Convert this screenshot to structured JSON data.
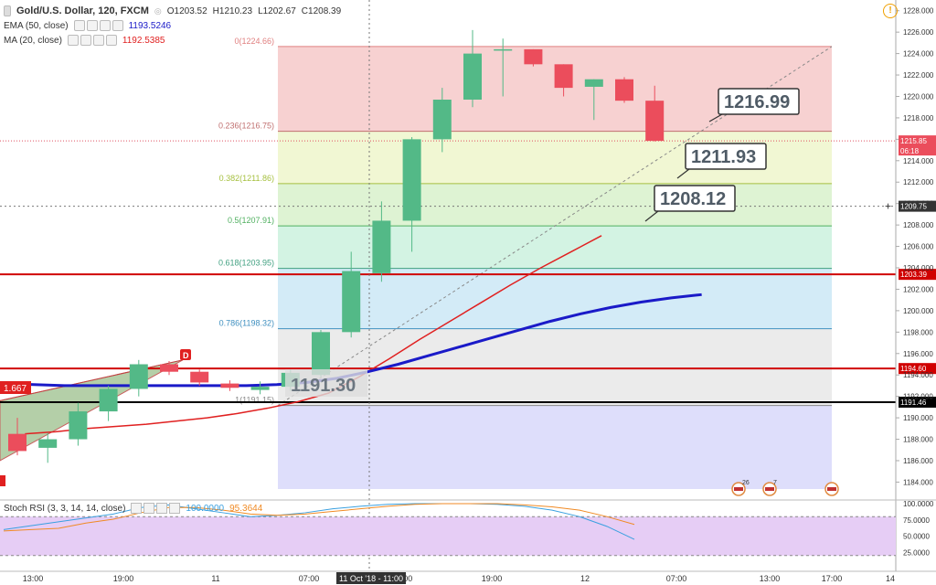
{
  "header": {
    "symbol": "Gold/U.S. Dollar, 120, FXCM",
    "ohlc": {
      "o_label": "O",
      "o": "1203.52",
      "h_label": "H",
      "h": "1210.23",
      "l_label": "L",
      "l": "1202.67",
      "c_label": "C",
      "c": "1208.39"
    },
    "ema_label": "EMA (50, close)",
    "ema_value": "1193.5246",
    "ma_label": "MA (20, close)",
    "ma_value": "1192.5385",
    "warning_glyph": "!"
  },
  "rsi_panel": {
    "label": "Stoch RSI (3, 3, 14, 14, close)",
    "k_value": "100.0000",
    "d_value": "95.3644",
    "ticks": [
      "100.0000",
      "75.0000",
      "50.0000",
      "25.0000"
    ],
    "upper_band": 80,
    "lower_band": 20
  },
  "colors": {
    "up": "#53b987",
    "down": "#eb4d5c",
    "ema": "#1a1ac8",
    "ma": "#e02020",
    "red_lines": "#d00000",
    "black_line": "#000000",
    "callout_text": "#4f5b66",
    "callout_border": "#333333",
    "rsi_k": "#3aa0e0",
    "rsi_d": "#f08a24"
  },
  "chart_data": {
    "type": "candlestick",
    "title": "Gold/U.S. Dollar, 120, FXCM",
    "y_ticks": [
      1184,
      1186,
      1188,
      1190,
      1192,
      1194,
      1196,
      1198,
      1200,
      1202,
      1204,
      1206,
      1208,
      1210,
      1212,
      1214,
      1216,
      1218,
      1220,
      1222,
      1224,
      1226,
      1228
    ],
    "ylim": [
      1182.5,
      1229
    ],
    "x_ticks": [
      "13:00",
      "19:00",
      "11",
      "07:00",
      "13:00",
      "19:00",
      "12",
      "07:00",
      "13:00",
      "17:00",
      "14"
    ],
    "x_cursor_label": "11 Oct '18 - 11:00",
    "candles": [
      {
        "o": 1188.5,
        "h": 1190.0,
        "l": 1186.5,
        "c": 1186.9
      },
      {
        "o": 1187.2,
        "h": 1188.6,
        "l": 1185.8,
        "c": 1188.0
      },
      {
        "o": 1188.0,
        "h": 1191.4,
        "l": 1187.4,
        "c": 1190.6
      },
      {
        "o": 1190.6,
        "h": 1193.0,
        "l": 1189.7,
        "c": 1192.7
      },
      {
        "o": 1192.7,
        "h": 1195.4,
        "l": 1192.0,
        "c": 1195.0
      },
      {
        "o": 1195.0,
        "h": 1195.3,
        "l": 1194.0,
        "c": 1194.3
      },
      {
        "o": 1194.3,
        "h": 1194.5,
        "l": 1193.0,
        "c": 1193.3
      },
      {
        "o": 1193.2,
        "h": 1193.5,
        "l": 1192.5,
        "c": 1192.8
      },
      {
        "o": 1192.6,
        "h": 1193.4,
        "l": 1192.2,
        "c": 1192.9
      },
      {
        "o": 1192.9,
        "h": 1194.5,
        "l": 1192.5,
        "c": 1194.2
      },
      {
        "o": 1194.0,
        "h": 1198.2,
        "l": 1193.8,
        "c": 1198.0
      },
      {
        "o": 1198.0,
        "h": 1205.5,
        "l": 1197.5,
        "c": 1203.7
      },
      {
        "o": 1203.5,
        "h": 1210.2,
        "l": 1202.7,
        "c": 1208.4
      },
      {
        "o": 1208.4,
        "h": 1216.2,
        "l": 1205.5,
        "c": 1216.0
      },
      {
        "o": 1216.0,
        "h": 1220.8,
        "l": 1214.8,
        "c": 1219.7
      },
      {
        "o": 1219.7,
        "h": 1226.2,
        "l": 1219.0,
        "c": 1224.0
      },
      {
        "o": 1224.3,
        "h": 1225.4,
        "l": 1220.0,
        "c": 1224.4
      },
      {
        "o": 1224.4,
        "h": 1224.4,
        "l": 1222.8,
        "c": 1223.0
      },
      {
        "o": 1223.0,
        "h": 1223.0,
        "l": 1220.0,
        "c": 1220.8
      },
      {
        "o": 1220.9,
        "h": 1221.6,
        "l": 1217.8,
        "c": 1221.6
      },
      {
        "o": 1221.6,
        "h": 1221.8,
        "l": 1219.4,
        "c": 1219.6
      },
      {
        "o": 1219.6,
        "h": 1221.0,
        "l": 1215.8,
        "c": 1215.85
      }
    ],
    "ema_50": [
      1193.2,
      1193.1,
      1193.0,
      1193.0,
      1193.0,
      1193.0,
      1193.0,
      1193.0,
      1193.0,
      1193.1,
      1193.3,
      1193.7,
      1194.3,
      1195.0,
      1195.8,
      1196.6,
      1197.4,
      1198.2,
      1199.0,
      1199.7,
      1200.3,
      1200.8,
      1201.2,
      1201.5
    ],
    "ma_20": [
      1188.5,
      1188.7,
      1189.0,
      1189.2,
      1189.4,
      1189.7,
      1190.0,
      1190.4,
      1190.9,
      1191.5,
      1192.3,
      1193.8,
      1195.5,
      1197.3,
      1199.0,
      1200.7,
      1202.4,
      1204.0,
      1205.5,
      1207.0
    ],
    "fib_levels": [
      {
        "label": "0(1224.66)",
        "value": 1224.66
      },
      {
        "label": "0.236(1216.75)",
        "value": 1216.75
      },
      {
        "label": "0.382(1211.86)",
        "value": 1211.86
      },
      {
        "label": "0.5(1207.91)",
        "value": 1207.91
      },
      {
        "label": "0.618(1203.95)",
        "value": 1203.95
      },
      {
        "label": "0.786(1198.32)",
        "value": 1198.32
      },
      {
        "label": "1(1191.15)",
        "value": 1191.15
      }
    ],
    "horizontal_lines": [
      {
        "value": 1203.39,
        "label": "1203.39",
        "color": "red"
      },
      {
        "value": 1194.6,
        "label": "1194.60",
        "color": "red"
      },
      {
        "value": 1191.46,
        "label": "1191.46",
        "color": "black"
      }
    ],
    "price_labels": [
      {
        "value": 1215.85,
        "label": "1215.85",
        "sub": "06:18",
        "color": "red"
      },
      {
        "value": 1209.75,
        "label": "1209.75",
        "color": "dark"
      }
    ],
    "callouts": [
      "1216.99",
      "1211.93",
      "1208.12",
      "1191.30"
    ],
    "triangle_label": "D",
    "left_badge": "1.667",
    "event_counts": [
      "26",
      "7"
    ]
  }
}
